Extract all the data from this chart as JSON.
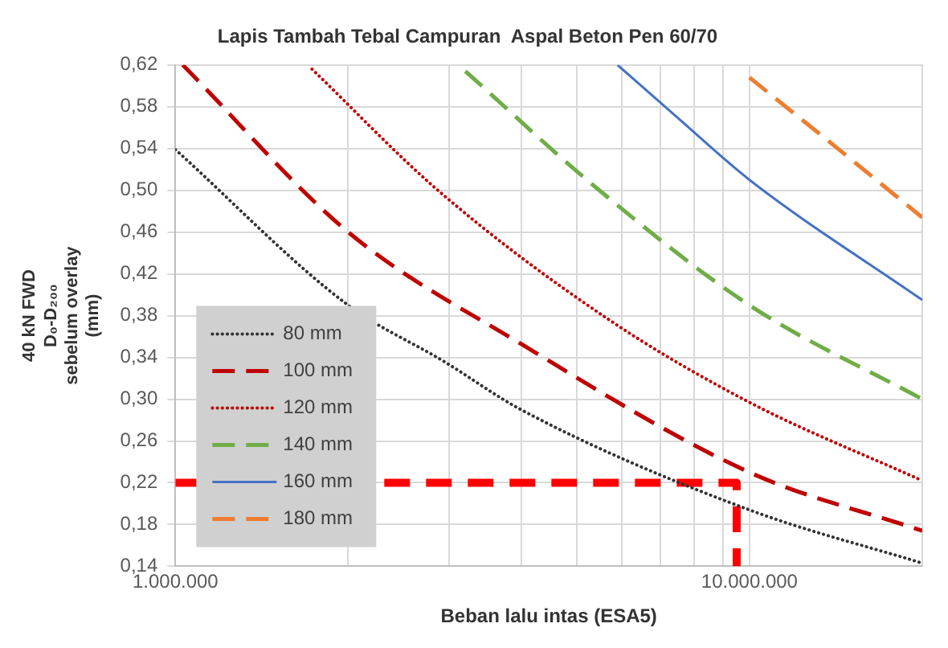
{
  "chart_data": {
    "type": "line",
    "title": "Lapis Tambah Tebal Campuran  Aspal Beton Pen 60/70",
    "xlabel": "Beban lalu intas (ESA5)",
    "ylabel": "40 kN FWD\nD₀-D₂₀₀\nsebelum overlay\n(mm)",
    "log": "x",
    "grid": true,
    "legend": "bottom left",
    "marker": "none",
    "xlim": [
      1000000,
      20000000
    ],
    "xticks": [
      {
        "value": 1000000,
        "label": "1.000.000"
      },
      {
        "value": 2000000,
        "label": null
      },
      {
        "value": 3000000,
        "label": null
      },
      {
        "value": 4000000,
        "label": null
      },
      {
        "value": 5000000,
        "label": null
      },
      {
        "value": 6000000,
        "label": null
      },
      {
        "value": 7000000,
        "label": null
      },
      {
        "value": 8000000,
        "label": null
      },
      {
        "value": 9000000,
        "label": null
      },
      {
        "value": 10000000,
        "label": "10.000.000"
      },
      {
        "value": 20000000,
        "label": null
      }
    ],
    "ylim": [
      0.14,
      0.62
    ],
    "yticks": [
      {
        "value": 0.14,
        "label": "0,14"
      },
      {
        "value": 0.18,
        "label": "0,18"
      },
      {
        "value": 0.22,
        "label": "0,22"
      },
      {
        "value": 0.26,
        "label": "0,26"
      },
      {
        "value": 0.3,
        "label": "0,30"
      },
      {
        "value": 0.34,
        "label": "0,34"
      },
      {
        "value": 0.38,
        "label": "0,38"
      },
      {
        "value": 0.42,
        "label": "0,42"
      },
      {
        "value": 0.46,
        "label": "0,46"
      },
      {
        "value": 0.5,
        "label": "0,50"
      },
      {
        "value": 0.54,
        "label": "0,54"
      },
      {
        "value": 0.58,
        "label": "0,58"
      },
      {
        "value": 0.62,
        "label": "0,62"
      }
    ],
    "series": [
      {
        "name": "80 mm",
        "color": "#333333",
        "line_style": "dotted",
        "x": [
          1000000,
          2000000,
          2940000,
          4000000,
          10000000,
          20000000
        ],
        "values": [
          0.539,
          0.39,
          0.336,
          0.29,
          0.194,
          0.143
        ]
      },
      {
        "name": "100 mm",
        "color": "#c00000",
        "line_style": "dashed",
        "x": [
          1030000,
          2000000,
          4000000,
          10000000,
          20000000
        ],
        "values": [
          0.62,
          0.46,
          0.353,
          0.23,
          0.174
        ]
      },
      {
        "name": "120 mm",
        "color": "#c00000",
        "line_style": "dotted",
        "x": [
          1730000,
          2880000,
          5660000,
          10000000,
          20000000
        ],
        "values": [
          0.616,
          0.499,
          0.377,
          0.297,
          0.222
        ]
      },
      {
        "name": "140 mm",
        "color": "#70ad47",
        "line_style": "dashed",
        "x": [
          3200000,
          5340000,
          10000000,
          20000000
        ],
        "values": [
          0.614,
          0.505,
          0.39,
          0.3
        ]
      },
      {
        "name": "160 mm",
        "color": "#4472c4",
        "line_style": "solid",
        "x": [
          5890000,
          7440000,
          10000000,
          20000000
        ],
        "values": [
          0.62,
          0.571,
          0.51,
          0.395
        ]
      },
      {
        "name": "180 mm",
        "color": "#ed7d31",
        "line_style": "dashed",
        "x": [
          10000000,
          14100000,
          20000000
        ],
        "values": [
          0.608,
          0.542,
          0.474
        ]
      },
      {
        "color": "#ff0000",
        "line_style": "dashed",
        "x": [
          1000000,
          9500000,
          9500000
        ],
        "values": [
          0.22,
          0.22,
          0.14
        ]
      }
    ]
  }
}
